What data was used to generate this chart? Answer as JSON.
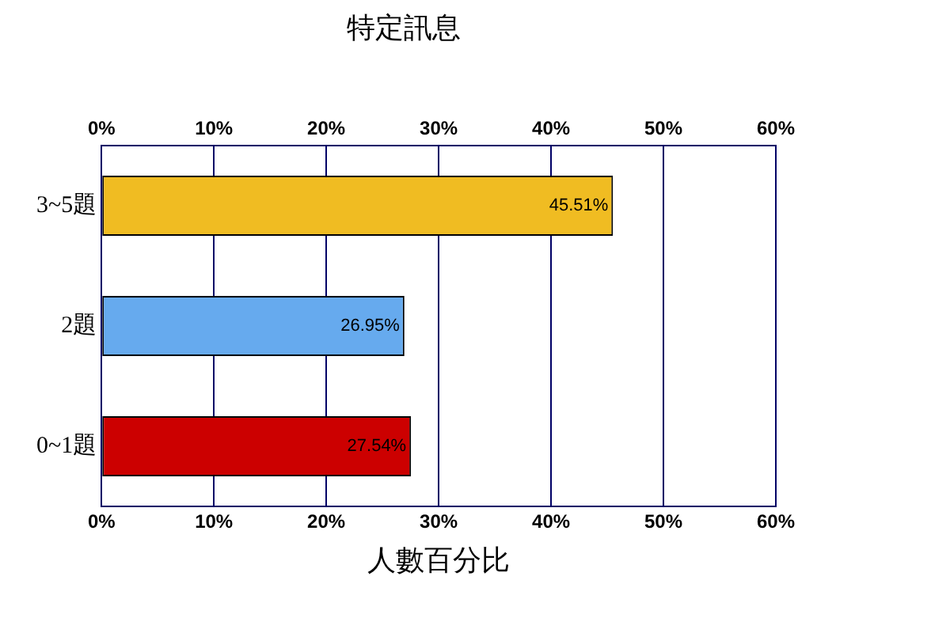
{
  "chart_data": {
    "type": "bar",
    "orientation": "horizontal",
    "title": "特定訊息",
    "xlabel": "人數百分比",
    "categories": [
      "3~5題",
      "2題",
      "0~1題"
    ],
    "values": [
      45.51,
      26.95,
      27.54
    ],
    "colors": [
      "#f0bc22",
      "#66aaee",
      "#cc0000"
    ],
    "value_labels": [
      "45.51%",
      "26.95%",
      "27.54%"
    ],
    "xlim": [
      0,
      60
    ],
    "xticks": [
      {
        "value": 0,
        "label": "0%"
      },
      {
        "value": 10,
        "label": "10%"
      },
      {
        "value": 20,
        "label": "20%"
      },
      {
        "value": 30,
        "label": "30%"
      },
      {
        "value": 40,
        "label": "40%"
      },
      {
        "value": 50,
        "label": "50%"
      },
      {
        "value": 60,
        "label": "60%"
      }
    ],
    "x2lim": [
      0,
      60
    ],
    "x2ticks": [
      {
        "value": 0,
        "label": "0%"
      },
      {
        "value": 10,
        "label": "10%"
      },
      {
        "value": 20,
        "label": "20%"
      },
      {
        "value": 30,
        "label": "30%"
      },
      {
        "value": 40,
        "label": "40%"
      },
      {
        "value": 50,
        "label": "50%"
      },
      {
        "value": 60,
        "label": "60%"
      }
    ],
    "grid": "x",
    "legend": false
  }
}
